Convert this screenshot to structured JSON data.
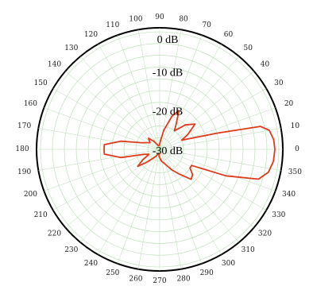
{
  "chart_data": {
    "type": "polar",
    "title": "",
    "angle_unit": "degrees",
    "angle_ticks": [
      0,
      10,
      20,
      30,
      40,
      50,
      60,
      70,
      80,
      90,
      100,
      110,
      120,
      130,
      140,
      150,
      160,
      170,
      180,
      190,
      200,
      210,
      220,
      230,
      240,
      250,
      260,
      270,
      280,
      290,
      300,
      310,
      320,
      330,
      340,
      350
    ],
    "radial_ticks": [
      {
        "label": "0 dB",
        "value": 0
      },
      {
        "label": "-10 dB",
        "value": -10
      },
      {
        "label": "-20 dB",
        "value": -20
      },
      {
        "label": "-30 dB",
        "value": -30
      }
    ],
    "radial_range": [
      -30,
      0
    ],
    "grid_circles": 10,
    "grid": true,
    "series": [
      {
        "color": "#e03a1a",
        "points": [
          [
            0,
            -1
          ],
          [
            5,
            -1.2
          ],
          [
            10,
            -2
          ],
          [
            13,
            -4
          ],
          [
            16,
            -15
          ],
          [
            19,
            -21
          ],
          [
            23,
            -24
          ],
          [
            28,
            -22
          ],
          [
            36,
            -19
          ],
          [
            44,
            -21
          ],
          [
            52,
            -24
          ],
          [
            58,
            -22
          ],
          [
            64,
            -19
          ],
          [
            70,
            -21
          ],
          [
            78,
            -25
          ],
          [
            86,
            -28
          ],
          [
            95,
            -29
          ],
          [
            110,
            -29
          ],
          [
            125,
            -27.5
          ],
          [
            135,
            -26
          ],
          [
            145,
            -27
          ],
          [
            160,
            -25
          ],
          [
            168,
            -20
          ],
          [
            175,
            -16
          ],
          [
            180,
            -16
          ],
          [
            185,
            -16
          ],
          [
            192,
            -20
          ],
          [
            198,
            -26
          ],
          [
            205,
            -27
          ],
          [
            212,
            -25
          ],
          [
            218,
            -23
          ],
          [
            224,
            -25
          ],
          [
            232,
            -27
          ],
          [
            242,
            -28
          ],
          [
            255,
            -29
          ],
          [
            268,
            -28
          ],
          [
            278,
            -27
          ],
          [
            290,
            -26
          ],
          [
            300,
            -24
          ],
          [
            308,
            -22
          ],
          [
            316,
            -19
          ],
          [
            322,
            -19.5
          ],
          [
            328,
            -21
          ],
          [
            333,
            -21
          ],
          [
            338,
            -12
          ],
          [
            343,
            -4
          ],
          [
            348,
            -2
          ],
          [
            354,
            -1.2
          ],
          [
            360,
            -1
          ]
        ]
      }
    ]
  }
}
